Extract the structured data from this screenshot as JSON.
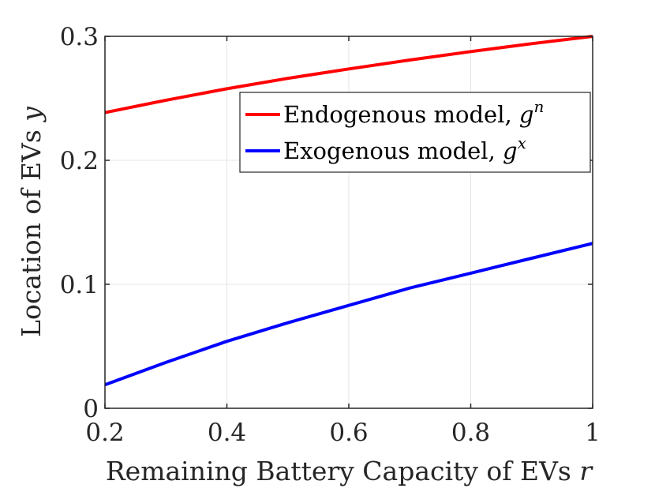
{
  "chart_data": {
    "type": "line",
    "title": "",
    "xlabel": "Remaining Battery Capacity of EVs",
    "xlabel_var": "r",
    "ylabel": "Location of EVs",
    "ylabel_var": "y",
    "xlim": [
      0.2,
      1
    ],
    "ylim": [
      0,
      0.3
    ],
    "xticks": [
      0.2,
      0.4,
      0.6,
      0.8,
      1
    ],
    "xtick_labels": [
      "0.2",
      "0.4",
      "0.6",
      "0.8",
      "1"
    ],
    "yticks": [
      0,
      0.1,
      0.2,
      0.3
    ],
    "ytick_labels": [
      "0",
      "0.1",
      "0.2",
      "0.3"
    ],
    "grid": true,
    "legend_position": "top-right",
    "x": [
      0.2,
      0.3,
      0.4,
      0.5,
      0.6,
      0.7,
      0.8,
      0.9,
      1.0
    ],
    "series": [
      {
        "name": "Endogenous model, ",
        "name_var": "g",
        "name_sup": "n",
        "color": "#ff0000",
        "values": [
          0.2385,
          0.2485,
          0.2577,
          0.2661,
          0.2737,
          0.2809,
          0.2877,
          0.2941,
          0.3
        ]
      },
      {
        "name": "Exogenous model, ",
        "name_var": "g",
        "name_sup": "x",
        "color": "#0000ff",
        "values": [
          0.019,
          0.037,
          0.054,
          0.069,
          0.083,
          0.097,
          0.109,
          0.121,
          0.133
        ]
      }
    ]
  }
}
